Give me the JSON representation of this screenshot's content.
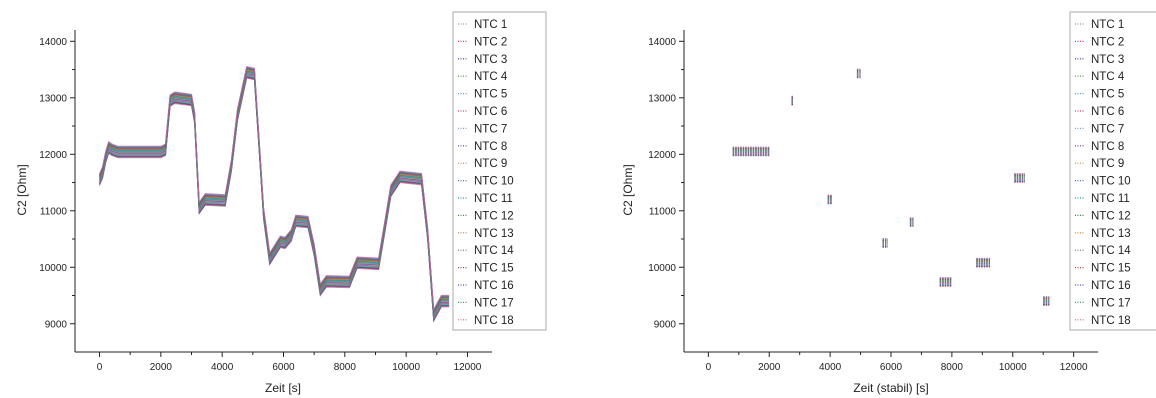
{
  "charts": [
    {
      "type": "line",
      "xlabel": "Zeit [s]",
      "ylabel": "C2 [Ohm]",
      "xlim": [
        -800,
        12800
      ],
      "ylim": [
        8500,
        14200
      ],
      "xticks": [
        0,
        2000,
        4000,
        6000,
        8000,
        10000,
        12000
      ],
      "yticks": [
        9000,
        10000,
        11000,
        12000,
        13000,
        14000
      ],
      "legend_position": "right",
      "segments": [
        {
          "x": [
            0,
            100,
            200,
            300,
            400,
            600,
            2000,
            2150
          ],
          "y": [
            11550,
            11680,
            11950,
            12120,
            12080,
            12040,
            12040,
            12080
          ]
        },
        {
          "x": [
            2150,
            2300,
            2450,
            3000,
            3100,
            3250
          ],
          "y": [
            12080,
            12950,
            13000,
            12960,
            12650,
            11050
          ]
        },
        {
          "x": [
            3250,
            3450,
            4100,
            4300,
            4500,
            4800,
            5050
          ],
          "y": [
            11050,
            11200,
            11180,
            11800,
            12700,
            13450,
            13420
          ]
        },
        {
          "x": [
            5050,
            5200,
            5350,
            5550,
            5900,
            6050,
            6250
          ],
          "y": [
            13420,
            12200,
            10950,
            10150,
            10450,
            10430,
            10560
          ]
        },
        {
          "x": [
            6250,
            6400,
            6800,
            7000,
            7200
          ],
          "y": [
            10560,
            10820,
            10800,
            10300,
            9600
          ]
        },
        {
          "x": [
            7200,
            7400,
            8150,
            8400,
            9100,
            9300,
            9500,
            9800,
            10500,
            10700
          ],
          "y": [
            9600,
            9750,
            9740,
            10080,
            10060,
            10700,
            11350,
            11600,
            11560,
            10600
          ]
        },
        {
          "x": [
            10700,
            10900,
            11000,
            11150,
            11400
          ],
          "y": [
            10600,
            9150,
            9250,
            9400,
            9400
          ]
        }
      ]
    },
    {
      "type": "scatter",
      "xlabel": "Zeit (stabil) [s]",
      "ylabel": "C2 [Ohm]",
      "xlim": [
        -800,
        12800
      ],
      "ylim": [
        8500,
        14200
      ],
      "xticks": [
        0,
        2000,
        4000,
        6000,
        8000,
        10000,
        12000
      ],
      "yticks": [
        9000,
        10000,
        11000,
        12000,
        13000,
        14000
      ],
      "legend_position": "right",
      "clusters": [
        {
          "x0": 800,
          "x1": 2000,
          "y": 12050
        },
        {
          "x0": 2730,
          "x1": 2800,
          "y": 12950
        },
        {
          "x0": 3920,
          "x1": 4080,
          "y": 11200
        },
        {
          "x0": 4880,
          "x1": 5000,
          "y": 13430
        },
        {
          "x0": 5720,
          "x1": 5900,
          "y": 10430
        },
        {
          "x0": 6620,
          "x1": 6740,
          "y": 10800
        },
        {
          "x0": 7600,
          "x1": 8000,
          "y": 9740
        },
        {
          "x0": 8800,
          "x1": 9250,
          "y": 10080
        },
        {
          "x0": 10050,
          "x1": 10400,
          "y": 11580
        },
        {
          "x0": 11000,
          "x1": 11200,
          "y": 9400
        }
      ]
    }
  ],
  "legend": [
    "NTC 1",
    "NTC 2",
    "NTC 3",
    "NTC 4",
    "NTC 5",
    "NTC 6",
    "NTC 7",
    "NTC 8",
    "NTC 9",
    "NTC 10",
    "NTC 11",
    "NTC 12",
    "NTC 13",
    "NTC 14",
    "NTC 15",
    "NTC 16",
    "NTC 17",
    "NTC 18"
  ],
  "colors": [
    "#9a9a9a",
    "#e0307a",
    "#2e3a8f",
    "#3a9a48",
    "#5a9ad8",
    "#c44070",
    "#7aa0d0",
    "#6a3a8a",
    "#b89048",
    "#4a78c8",
    "#20a0b0",
    "#2a8a4a",
    "#d07030",
    "#707070",
    "#a04040",
    "#5050c0",
    "#3a9a70",
    "#c060a0"
  ]
}
